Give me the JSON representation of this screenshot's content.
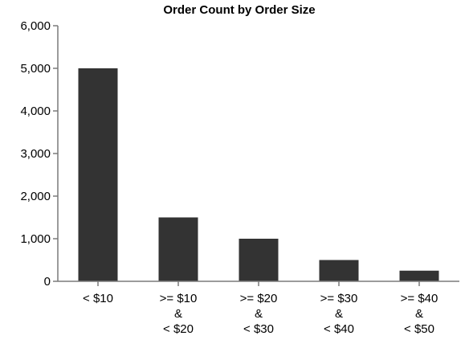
{
  "chart_data": {
    "type": "bar",
    "title": "Order Count by Order Size",
    "xlabel": "",
    "ylabel": "",
    "categories": [
      [
        "< $10"
      ],
      [
        ">= $10",
        "&",
        "< $20"
      ],
      [
        ">= $20",
        "&",
        "< $30"
      ],
      [
        ">= $30",
        "&",
        "< $40"
      ],
      [
        ">= $40",
        "&",
        "< $50"
      ]
    ],
    "values": [
      5000,
      1500,
      1000,
      500,
      250
    ],
    "ylim": [
      0,
      6000
    ],
    "yticks": [
      "0",
      "1,000",
      "2,000",
      "3,000",
      "4,000",
      "5,000",
      "6,000"
    ],
    "grid": false,
    "bar_color": "#333333"
  }
}
